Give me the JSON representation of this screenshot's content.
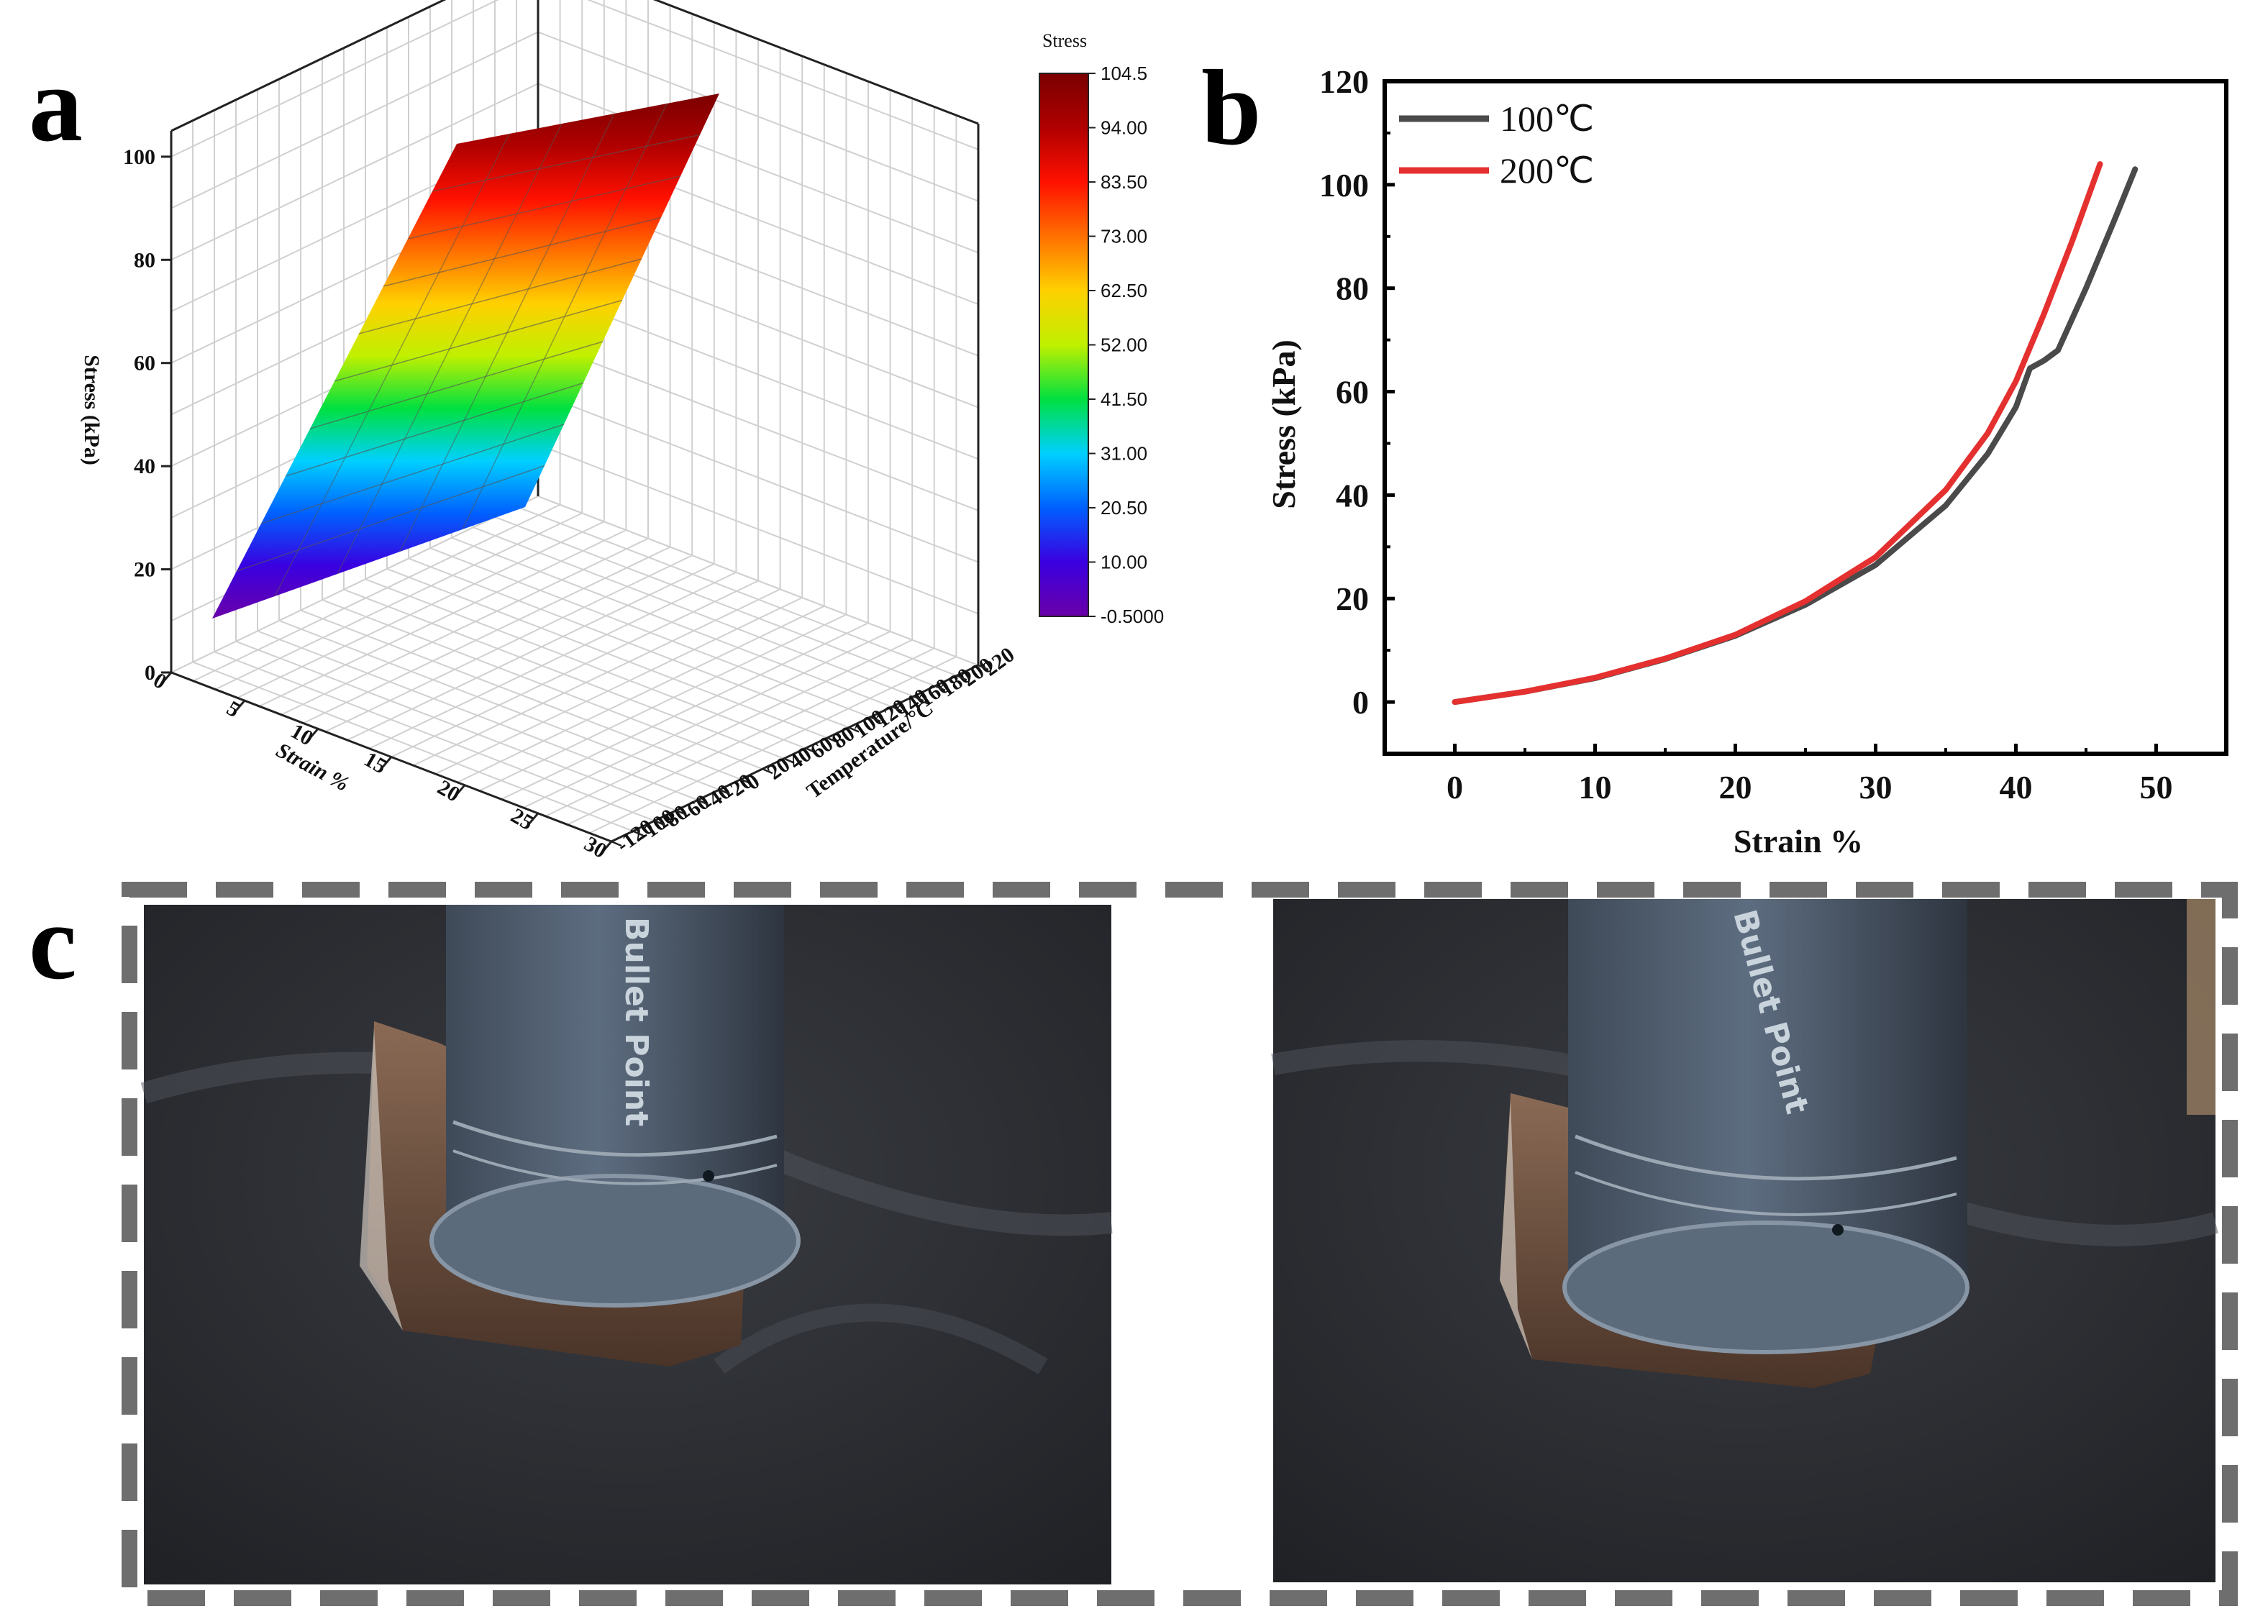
{
  "panels": {
    "a_letter": "a",
    "b_letter": "b",
    "c_letter": "c"
  },
  "colors": {
    "line_100": "#4a4a4a",
    "line_200": "#e53030",
    "dash_border": "#6e6e6e",
    "photo_background": "#2b2d31"
  },
  "chart_data": [
    {
      "type": "surface3d",
      "title": "",
      "zlabel": "Stress (kPa)",
      "xlabel": "Strain %",
      "ylabel": "Temperature/°C",
      "x_ticks": [
        "0",
        "5",
        "10",
        "15",
        "20",
        "25",
        "30"
      ],
      "y_ticks": [
        "-120",
        "-100",
        "-80",
        "-60",
        "-40",
        "-20",
        "0",
        "20",
        "40",
        "60",
        "80",
        "100",
        "120",
        "140",
        "160",
        "180",
        "200",
        "220"
      ],
      "z_ticks": [
        "0",
        "20",
        "40",
        "60",
        "80",
        "100"
      ],
      "xlim": [
        0,
        30
      ],
      "ylim": [
        -120,
        220
      ],
      "zlim": [
        0,
        100
      ],
      "colorbar": {
        "title": "Stress",
        "labels": [
          "104.5",
          "94.00",
          "83.50",
          "73.00",
          "62.50",
          "52.00",
          "41.50",
          "31.00",
          "20.50",
          "10.00",
          "-0.5000"
        ],
        "range": [
          -0.5,
          104.5
        ]
      },
      "surface_colors": [
        "#6a00a8",
        "#3a00e0",
        "#0060ff",
        "#00d0ff",
        "#00e040",
        "#c0f000",
        "#ffd000",
        "#ff7000",
        "#ff1000",
        "#b00000",
        "#7a0000"
      ],
      "grid": true
    },
    {
      "type": "line",
      "title": "",
      "xlabel": "Strain %",
      "ylabel": "Stress (kPa)",
      "xlim": [
        -5,
        55
      ],
      "ylim": [
        -10,
        120
      ],
      "x_ticks": [
        "0",
        "10",
        "20",
        "30",
        "40",
        "50"
      ],
      "y_ticks": [
        "0",
        "20",
        "40",
        "60",
        "80",
        "100",
        "120"
      ],
      "legend_position": "top-left",
      "series": [
        {
          "name": "100℃",
          "color": "#4a4a4a",
          "x": [
            0,
            5,
            10,
            15,
            20,
            25,
            30,
            35,
            38,
            40,
            41,
            42,
            43,
            45,
            47,
            48.5
          ],
          "y": [
            0,
            2,
            4.6,
            8.3,
            12.8,
            18.8,
            26.5,
            38,
            48,
            57,
            64.5,
            66,
            68,
            80,
            93,
            103
          ]
        },
        {
          "name": "200℃",
          "color": "#e53030",
          "x": [
            0,
            5,
            10,
            15,
            20,
            25,
            30,
            35,
            38,
            40,
            42,
            44,
            46
          ],
          "y": [
            0,
            2,
            4.7,
            8.4,
            13,
            19.5,
            28,
            41,
            52,
            62,
            75,
            89,
            104
          ]
        }
      ],
      "grid": false
    }
  ],
  "photos": {
    "pen_label": "Bullet Point"
  }
}
